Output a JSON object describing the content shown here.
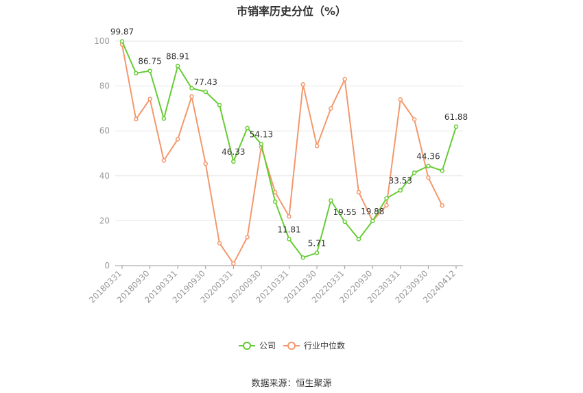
{
  "chart_data": {
    "type": "line",
    "title": "市销率历史分位（%）",
    "xlabel": "",
    "ylabel": "",
    "ylim": [
      0,
      100
    ],
    "yticks": [
      0,
      20,
      40,
      60,
      80,
      100
    ],
    "grid": true,
    "legend_position": "bottom",
    "x_tick_labels": [
      "20180331",
      "20180930",
      "20190331",
      "20190930",
      "20200331",
      "20200930",
      "20210331",
      "20210930",
      "20220331",
      "20220930",
      "20230331",
      "20230930",
      "20240412"
    ],
    "x_tick_indices": [
      0,
      2,
      4,
      6,
      8,
      10,
      12,
      14,
      16,
      18,
      20,
      22,
      24
    ],
    "series": [
      {
        "name": "公司",
        "color": "#66cc33",
        "values": [
          99.87,
          85.7,
          86.75,
          65.5,
          88.91,
          79.0,
          77.43,
          71.5,
          46.33,
          61.3,
          54.13,
          28.5,
          11.81,
          3.6,
          5.71,
          29.0,
          19.55,
          11.8,
          19.88,
          30.0,
          33.53,
          41.4,
          44.36,
          42.3,
          61.88
        ],
        "labels": {
          "0": "99.87",
          "2": "86.75",
          "4": "88.91",
          "6": "77.43",
          "8": "46.33",
          "10": "54.13",
          "12": "11.81",
          "14": "5.71",
          "16": "19.55",
          "18": "19.88",
          "20": "33.53",
          "22": "44.36",
          "24": "61.88"
        }
      },
      {
        "name": "行业中位数",
        "color": "#f4976c",
        "values": [
          98.5,
          65.2,
          74.2,
          46.8,
          56.3,
          75.3,
          45.4,
          10.0,
          0.9,
          12.7,
          52.8,
          32.7,
          21.9,
          80.7,
          53.3,
          70.0,
          83.0,
          32.7,
          19.9,
          26.9,
          74.0,
          65.1,
          39.2,
          26.8,
          null
        ],
        "labels": {}
      }
    ]
  },
  "footer": {
    "source": "数据来源：恒生聚源"
  }
}
